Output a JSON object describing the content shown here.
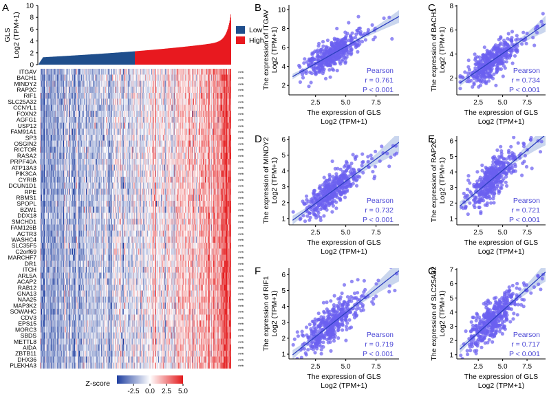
{
  "colors": {
    "low": "#1f4e8c",
    "high": "#e8191f",
    "point": "#6b5ff0",
    "line": "#2c3fbf",
    "band": "#b8c8e8",
    "stat_text": "#4a46d6"
  },
  "chart_data": [
    {
      "panel": "A",
      "type": "heatmap",
      "top_bar": {
        "type": "bar",
        "ylabel_line1": "GLS",
        "ylabel_line2": "Log2 (TPM+1)",
        "ylim": [
          0,
          10
        ],
        "yticks": [
          "0",
          "2",
          "4",
          "6",
          "8",
          "10"
        ],
        "legend": [
          {
            "label": "Low",
            "color": "#1f4e8c"
          },
          {
            "label": "High",
            "color": "#e8191f"
          }
        ]
      },
      "genes": [
        "ITGAV",
        "BACH1",
        "MINDY2",
        "RAP2C",
        "RIF1",
        "SLC25A32",
        "CCNYL1",
        "FOXN2",
        "AGFG1",
        "USP12",
        "FAM91A1",
        "SP3",
        "OSGIN2",
        "RICTOR",
        "RASA2",
        "PRPF40A",
        "ATP13A3",
        "PIK3CA",
        "CYRIB",
        "DCUN1D1",
        "RPE",
        "RBMS1",
        "SPOPL",
        "BZW1",
        "DDX18",
        "SMCHD1",
        "FAM126B",
        "ACTR3",
        "WASHC4",
        "SLC35F5",
        "C2orf69",
        "MARCHF7",
        "DR1",
        "ITCH",
        "ARL5A",
        "ACAP2",
        "RAB12",
        "GNA13",
        "NAA25",
        "MAP3K2",
        "SOWAHC",
        "CDV3",
        "EPS15",
        "MORC3",
        "SBDS",
        "METTL8",
        "AIDA",
        "ZBTB11",
        "DHX36",
        "PLEKHA3"
      ],
      "significance": [
        "***",
        "***",
        "***",
        "***",
        "***",
        "***",
        "***",
        "***",
        "***",
        "***",
        "***",
        "***",
        "***",
        "***",
        "***",
        "***",
        "***",
        "***",
        "***",
        "***",
        "***",
        "***",
        "***",
        "***",
        "***",
        "***",
        "***",
        "***",
        "***",
        "***",
        "***",
        "***",
        "***",
        "***",
        "***",
        "***",
        "***",
        "***",
        "***",
        "***",
        "***",
        "***",
        "***",
        "***",
        "***",
        "***",
        "***",
        "***",
        "***",
        "***"
      ],
      "colorbar": {
        "label": "Z-score",
        "range": [
          -5,
          5
        ],
        "ticks": [
          "-2.5",
          "0.0",
          "2.5",
          "5.0"
        ]
      }
    },
    {
      "panel": "B",
      "type": "scatter",
      "gene": "ITGAV",
      "ylabel_line1": "The expression of ITGAV",
      "ylabel_line2": "Log2 (TPM+1)",
      "xlabel_line1": "The expression of GLS",
      "xlabel_line2": "Log2 (TPM+1)",
      "xlim": [
        0.3,
        9.4
      ],
      "xticks": [
        2.5,
        5.0,
        7.5
      ],
      "xtick_labels": [
        "2.5",
        "5.0",
        "7.5"
      ],
      "ylim": [
        1.0,
        10.5
      ],
      "yticks": [
        2,
        4,
        6,
        8,
        10
      ],
      "ytick_labels": [
        "2",
        "4",
        "6",
        "8",
        "10"
      ],
      "fit": {
        "slope": 0.72,
        "intercept": 2.5
      },
      "mean_x": 3.9,
      "sd_x": 1.2,
      "resid_sd": 0.75,
      "stat_method": "Pearson",
      "stat_r": "r = 0.761",
      "stat_p": "P < 0.001"
    },
    {
      "panel": "C",
      "type": "scatter",
      "gene": "BACH1",
      "ylabel_line1": "The expression of BACH1",
      "ylabel_line2": "Log2 (TPM+1)",
      "xlabel_line1": "The expression of GLS",
      "xlabel_line2": "Log2 (TPM+1)",
      "xlim": [
        0.3,
        9.4
      ],
      "xticks": [
        2.5,
        5.0,
        7.5
      ],
      "xtick_labels": [
        "2.5",
        "5.0",
        "7.5"
      ],
      "ylim": [
        0.6,
        8.1
      ],
      "yticks": [
        2,
        4,
        6,
        8
      ],
      "ytick_labels": [
        "2",
        "4",
        "6",
        "8"
      ],
      "fit": {
        "slope": 0.56,
        "intercept": 1.25
      },
      "mean_x": 3.9,
      "sd_x": 1.2,
      "resid_sd": 0.65,
      "stat_method": "Pearson",
      "stat_r": "r = 0.734",
      "stat_p": "P < 0.001"
    },
    {
      "panel": "D",
      "type": "scatter",
      "gene": "MINDY2",
      "ylabel_line1": "The expression of MINDY2",
      "ylabel_line2": "Log2 (TPM+1)",
      "xlabel_line1": "The expression of GLS",
      "xlabel_line2": "Log2 (TPM+1)",
      "xlim": [
        0.3,
        9.4
      ],
      "xticks": [
        2.5,
        5.0,
        7.5
      ],
      "xtick_labels": [
        "2.5",
        "5.0",
        "7.5"
      ],
      "ylim": [
        0.6,
        6.2
      ],
      "yticks": [
        1,
        2,
        3,
        4,
        5,
        6
      ],
      "ytick_labels": [
        "1",
        "2",
        "3",
        "4",
        "5",
        "6"
      ],
      "fit": {
        "slope": 0.56,
        "intercept": 0.55
      },
      "mean_x": 3.9,
      "sd_x": 1.2,
      "resid_sd": 0.58,
      "stat_method": "Pearson",
      "stat_r": "r = 0.732",
      "stat_p": "P < 0.001"
    },
    {
      "panel": "E",
      "type": "scatter",
      "gene": "RAP2C",
      "ylabel_line1": "The expression of RAP2C",
      "ylabel_line2": "Log2 (TPM+1)",
      "xlabel_line1": "The expression of GLS",
      "xlabel_line2": "Log2 (TPM+1)",
      "xlim": [
        0.3,
        9.4
      ],
      "xticks": [
        2.5,
        5.0,
        7.5
      ],
      "xtick_labels": [
        "2.5",
        "5.0",
        "7.5"
      ],
      "ylim": [
        0.6,
        6.3
      ],
      "yticks": [
        1,
        2,
        3,
        4,
        5,
        6
      ],
      "ytick_labels": [
        "1",
        "2",
        "3",
        "4",
        "5",
        "6"
      ],
      "fit": {
        "slope": 0.52,
        "intercept": 1.5
      },
      "mean_x": 3.9,
      "sd_x": 1.2,
      "resid_sd": 0.6,
      "stat_method": "Pearson",
      "stat_r": "r = 0.721",
      "stat_p": "P < 0.001"
    },
    {
      "panel": "F",
      "type": "scatter",
      "gene": "RIF1",
      "ylabel_line1": "The expression of RIF1",
      "ylabel_line2": "Log2 (TPM+1)",
      "xlabel_line1": "The expression of GLS",
      "xlabel_line2": "Log2 (TPM+1)",
      "xlim": [
        0.3,
        9.4
      ],
      "xticks": [
        2.5,
        5.0,
        7.5
      ],
      "xtick_labels": [
        "2.5",
        "5.0",
        "7.5"
      ],
      "ylim": [
        0.7,
        6.4
      ],
      "yticks": [
        1,
        2,
        3,
        4,
        5,
        6
      ],
      "ytick_labels": [
        "1",
        "2",
        "3",
        "4",
        "5",
        "6"
      ],
      "fit": {
        "slope": 0.6,
        "intercept": 0.6
      },
      "mean_x": 3.9,
      "sd_x": 1.2,
      "resid_sd": 0.62,
      "stat_method": "Pearson",
      "stat_r": "r = 0.719",
      "stat_p": "P < 0.001"
    },
    {
      "panel": "G",
      "type": "scatter",
      "gene": "SLC25A32",
      "ylabel_line1": "The expression of SLC25A32",
      "ylabel_line2": "Log2 (TPM+1)",
      "xlabel_line1": "The expression of GLS",
      "xlabel_line2": "Log2 (TPM+1)",
      "xlim": [
        0.3,
        9.4
      ],
      "xticks": [
        2.5,
        5.0,
        7.5
      ],
      "xtick_labels": [
        "2.5",
        "5.0",
        "7.5"
      ],
      "ylim": [
        0.7,
        7.1
      ],
      "yticks": [
        1,
        2,
        3,
        4,
        5,
        6,
        7
      ],
      "ytick_labels": [
        "1",
        "2",
        "3",
        "4",
        "5",
        "6",
        "7"
      ],
      "fit": {
        "slope": 0.62,
        "intercept": 1.0
      },
      "mean_x": 3.9,
      "sd_x": 1.2,
      "resid_sd": 0.62,
      "stat_method": "Pearson",
      "stat_r": "r = 0.717",
      "stat_p": "P < 0.001"
    }
  ]
}
